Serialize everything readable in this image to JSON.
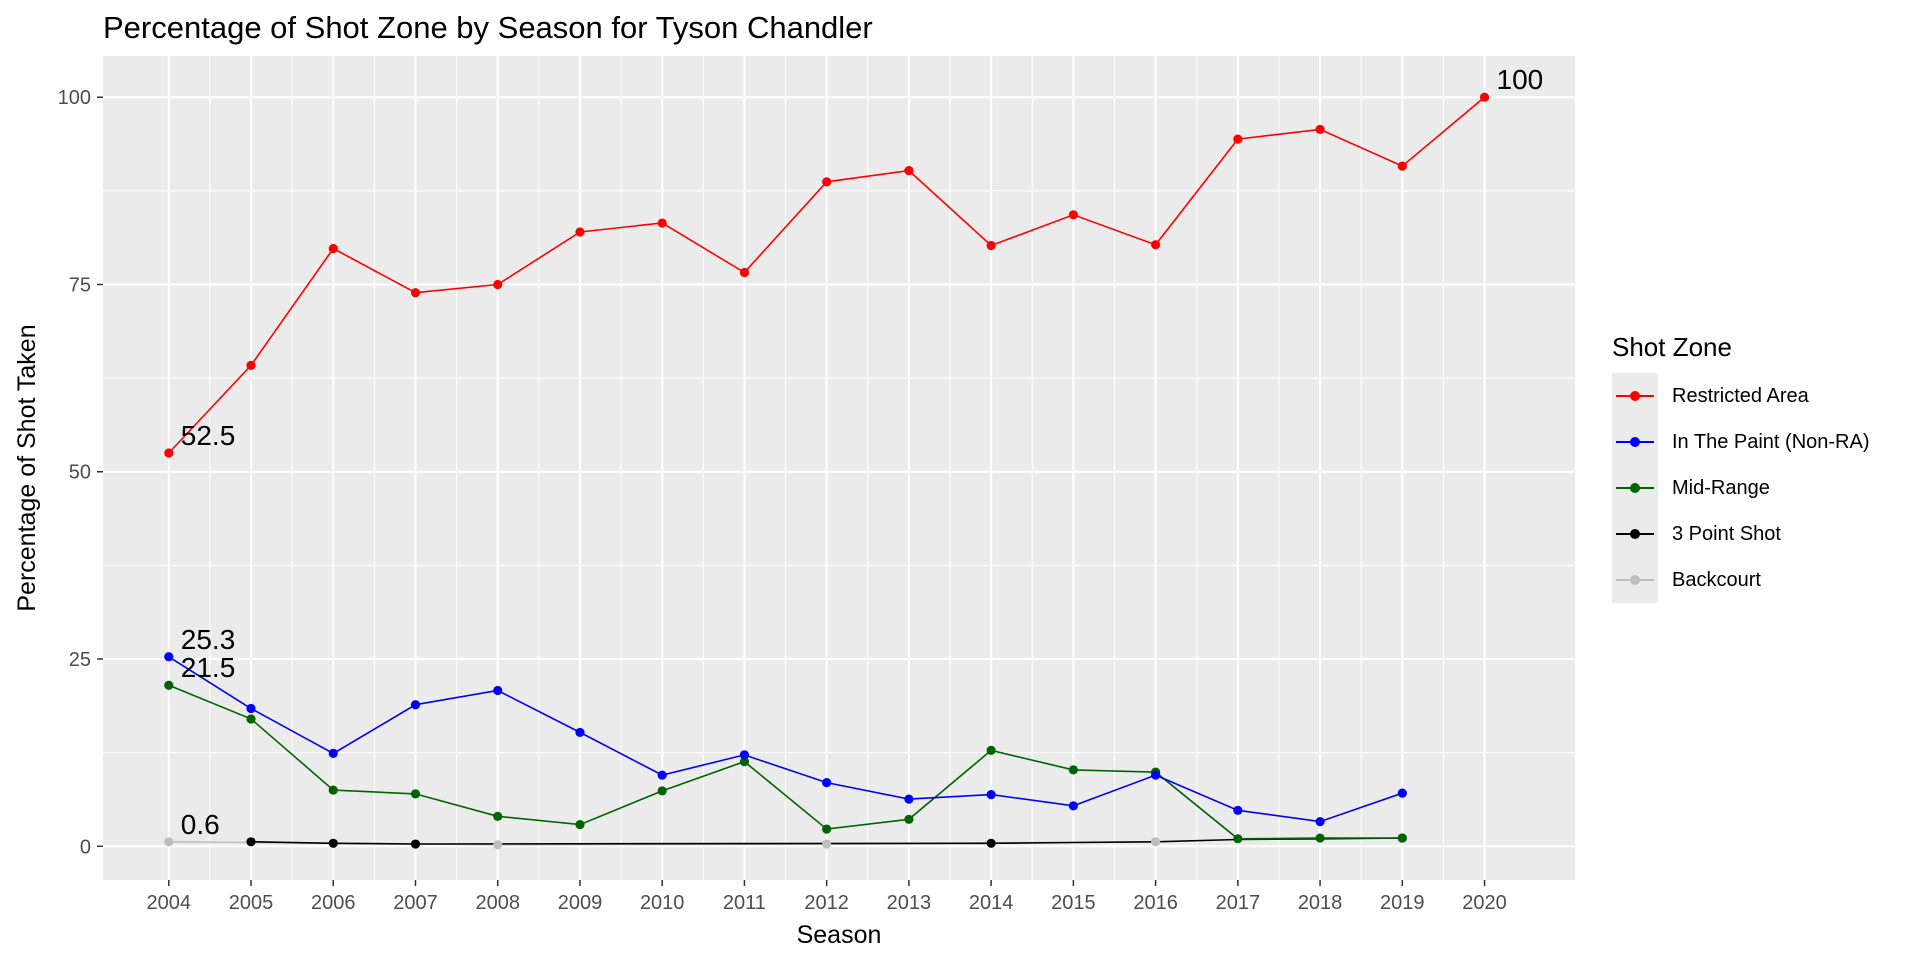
{
  "chart_data": {
    "type": "line",
    "title": "Percentage of Shot Zone by Season for Tyson Chandler",
    "xlabel": "Season",
    "ylabel": "Percentage of Shot Taken",
    "x": [
      2004,
      2005,
      2006,
      2007,
      2008,
      2009,
      2010,
      2011,
      2012,
      2013,
      2014,
      2015,
      2016,
      2017,
      2018,
      2019,
      2020
    ],
    "x_tick_labels": [
      "2004",
      "2005",
      "2006",
      "2007",
      "2008",
      "2009",
      "2010",
      "2011",
      "2012",
      "2013",
      "2014",
      "2015",
      "2016",
      "2017",
      "2018",
      "2019",
      "2020"
    ],
    "y_ticks": [
      0,
      25,
      50,
      75,
      100
    ],
    "y_tick_labels": [
      "0",
      "25",
      "50",
      "75",
      "100"
    ],
    "xlim": [
      2003.2,
      2021.1
    ],
    "ylim": [
      -4.5,
      105.5
    ],
    "grid": true,
    "legend_title": "Shot Zone",
    "legend_position": "right",
    "series": [
      {
        "name": "Restricted Area",
        "color": "#ff0000",
        "points": [
          [
            2004,
            52.5
          ],
          [
            2005,
            64.2
          ],
          [
            2006,
            79.8
          ],
          [
            2007,
            73.9
          ],
          [
            2008,
            75.0
          ],
          [
            2009,
            82.0
          ],
          [
            2010,
            83.2
          ],
          [
            2011,
            76.6
          ],
          [
            2012,
            88.7
          ],
          [
            2013,
            90.2
          ],
          [
            2014,
            80.2
          ],
          [
            2015,
            84.3
          ],
          [
            2016,
            80.3
          ],
          [
            2017,
            94.4
          ],
          [
            2018,
            95.7
          ],
          [
            2019,
            90.8
          ],
          [
            2020,
            100
          ]
        ]
      },
      {
        "name": "In The Paint (Non-RA)",
        "color": "#0000ff",
        "points": [
          [
            2004,
            25.3
          ],
          [
            2005,
            18.4
          ],
          [
            2006,
            12.4
          ],
          [
            2007,
            18.9
          ],
          [
            2008,
            20.8
          ],
          [
            2009,
            15.2
          ],
          [
            2010,
            9.5
          ],
          [
            2011,
            12.2
          ],
          [
            2012,
            8.5
          ],
          [
            2013,
            6.3
          ],
          [
            2014,
            6.9
          ],
          [
            2015,
            5.4
          ],
          [
            2016,
            9.5
          ],
          [
            2017,
            4.8
          ],
          [
            2018,
            3.3
          ],
          [
            2019,
            7.1
          ]
        ]
      },
      {
        "name": "Mid-Range",
        "color": "#006400",
        "points": [
          [
            2004,
            21.5
          ],
          [
            2005,
            17.0
          ],
          [
            2006,
            7.5
          ],
          [
            2007,
            7.0
          ],
          [
            2008,
            4.0
          ],
          [
            2009,
            2.9
          ],
          [
            2010,
            7.4
          ],
          [
            2011,
            11.3
          ],
          [
            2012,
            2.3
          ],
          [
            2013,
            3.6
          ],
          [
            2014,
            12.8
          ],
          [
            2015,
            10.2
          ],
          [
            2016,
            9.9
          ],
          [
            2017,
            1.0
          ],
          [
            2018,
            1.1
          ],
          [
            2019,
            1.1
          ]
        ]
      },
      {
        "name": "3 Point Shot",
        "color": "#000000",
        "points": [
          [
            2005,
            0.6
          ],
          [
            2006,
            0.4
          ],
          [
            2007,
            0.3
          ],
          [
            2014,
            0.4
          ],
          [
            2019,
            1.1
          ]
        ],
        "line_points": [
          [
            2005,
            0.6
          ],
          [
            2006,
            0.4
          ],
          [
            2007,
            0.3
          ],
          [
            2014,
            0.4
          ],
          [
            2015,
            0.5
          ],
          [
            2016,
            0.6
          ],
          [
            2017,
            0.9
          ],
          [
            2018,
            1.0
          ],
          [
            2019,
            1.1
          ]
        ]
      },
      {
        "name": "Backcourt",
        "color": "#bebebe",
        "points": [
          [
            2004,
            0.6
          ],
          [
            2008,
            0.2
          ],
          [
            2012,
            0.3
          ],
          [
            2016,
            0.6
          ]
        ],
        "line_points": [
          [
            2004,
            0.6
          ],
          [
            2005,
            0.5
          ],
          [
            2008,
            0.2
          ],
          [
            2012,
            0.3
          ],
          [
            2016,
            0.6
          ]
        ]
      }
    ],
    "annotations": [
      {
        "text": "52.5",
        "x": 2004,
        "y": 52.5
      },
      {
        "text": "25.3",
        "x": 2004,
        "y": 25.3
      },
      {
        "text": "21.5",
        "x": 2004,
        "y": 21.5
      },
      {
        "text": "0.6",
        "x": 2004,
        "y": 0.6
      },
      {
        "text": "100",
        "x": 2020,
        "y": 100
      }
    ]
  }
}
